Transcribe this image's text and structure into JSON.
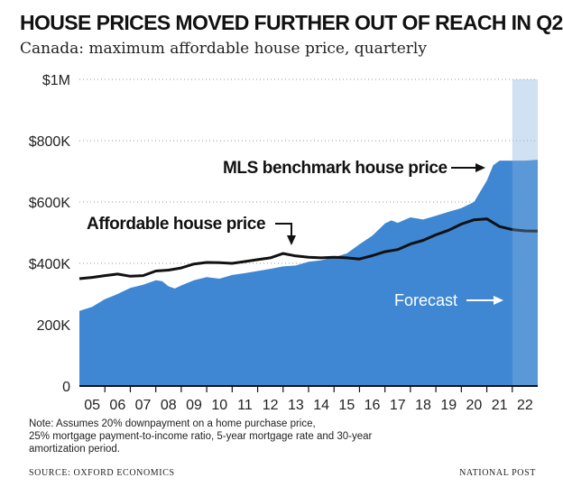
{
  "title": "HOUSE PRICES MOVED FURTHER OUT OF REACH IN Q2",
  "subtitle": "Canada: maximum affordable house price, quarterly",
  "colors": {
    "area": "#3f87d2",
    "forecast_band": "#c9ddf1",
    "line": "#111111",
    "grid": "#9a9a9a",
    "forecast_text": "#ffffff"
  },
  "chart_data": {
    "type": "area",
    "ylim": [
      0,
      1000000
    ],
    "y_ticks": [
      {
        "value": 0,
        "label": "0"
      },
      {
        "value": 200000,
        "label": "200K"
      },
      {
        "value": 400000,
        "label": "$400K"
      },
      {
        "value": 600000,
        "label": "$600K"
      },
      {
        "value": 800000,
        "label": "$800K"
      },
      {
        "value": 1000000,
        "label": "$1M"
      }
    ],
    "x_ticks": [
      "05",
      "06",
      "07",
      "08",
      "09",
      "10",
      "11",
      "12",
      "13",
      "14",
      "15",
      "16",
      "17",
      "18",
      "19",
      "20",
      "21",
      "22"
    ],
    "xlim": [
      2005.0,
      2023.0
    ],
    "forecast_start": 2022.0,
    "series": [
      {
        "name": "MLS benchmark house price",
        "kind": "area",
        "x": [
          2005.0,
          2005.5,
          2006.0,
          2006.5,
          2007.0,
          2007.5,
          2008.0,
          2008.25,
          2008.5,
          2008.75,
          2009.0,
          2009.5,
          2010.0,
          2010.5,
          2011.0,
          2011.5,
          2012.0,
          2012.5,
          2013.0,
          2013.5,
          2014.0,
          2014.5,
          2015.0,
          2015.5,
          2016.0,
          2016.5,
          2017.0,
          2017.25,
          2017.5,
          2018.0,
          2018.5,
          2019.0,
          2019.5,
          2020.0,
          2020.5,
          2021.0,
          2021.25,
          2021.5,
          2022.0,
          2022.5,
          2023.0
        ],
        "y": [
          245000,
          258000,
          283000,
          300000,
          320000,
          330000,
          345000,
          342000,
          325000,
          318000,
          328000,
          345000,
          355000,
          350000,
          362000,
          368000,
          375000,
          382000,
          390000,
          393000,
          405000,
          410000,
          420000,
          432000,
          462000,
          490000,
          530000,
          540000,
          532000,
          550000,
          543000,
          555000,
          568000,
          580000,
          600000,
          670000,
          720000,
          735000,
          735000,
          735000,
          738000
        ]
      },
      {
        "name": "Affordable house price",
        "kind": "line",
        "x": [
          2005.0,
          2005.5,
          2006.0,
          2006.5,
          2007.0,
          2007.5,
          2008.0,
          2008.5,
          2009.0,
          2009.5,
          2010.0,
          2010.5,
          2011.0,
          2011.5,
          2012.0,
          2012.5,
          2013.0,
          2013.5,
          2014.0,
          2014.5,
          2015.0,
          2015.5,
          2016.0,
          2016.5,
          2017.0,
          2017.5,
          2018.0,
          2018.5,
          2019.0,
          2019.5,
          2020.0,
          2020.5,
          2021.0,
          2021.5,
          2022.0,
          2022.5,
          2023.0
        ],
        "y": [
          350000,
          354000,
          360000,
          365000,
          358000,
          360000,
          375000,
          378000,
          385000,
          398000,
          403000,
          402000,
          400000,
          406000,
          412000,
          418000,
          432000,
          424000,
          420000,
          418000,
          420000,
          418000,
          414000,
          425000,
          438000,
          445000,
          463000,
          475000,
          493000,
          508000,
          528000,
          542000,
          545000,
          520000,
          510000,
          506000,
          505000
        ]
      }
    ],
    "annotations": {
      "mls_label": "MLS benchmark house price",
      "affordable_label": "Affordable house price",
      "forecast_label": "Forecast"
    }
  },
  "footer": {
    "note_line1": "Note: Assumes 20% downpayment on a home purchase price,",
    "note_line2": "25% mortgage payment-to-income ratio, 5-year mortgage rate and 30-year",
    "note_line3": "amortization period.",
    "source": "SOURCE: OXFORD ECONOMICS",
    "credit": "NATIONAL POST"
  }
}
